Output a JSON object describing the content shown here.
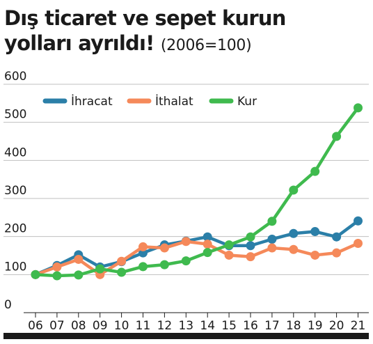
{
  "title": {
    "main": "Dış ticaret ve sepet kurun yolları ayrıldı!",
    "sub": "(2006=100)"
  },
  "chart_data": {
    "type": "line",
    "title": "Dış ticaret ve sepet kurun yolları ayrıldı!",
    "subtitle": "(2006=100)",
    "xlabel": "",
    "ylabel": "",
    "x": [
      "06",
      "07",
      "08",
      "09",
      "10",
      "11",
      "12",
      "13",
      "14",
      "15",
      "16",
      "17",
      "18",
      "19",
      "20",
      "21"
    ],
    "ylim": [
      0,
      600
    ],
    "yticks": [
      0,
      100,
      200,
      300,
      400,
      500,
      600
    ],
    "grid": true,
    "legend_position": "top-left",
    "series": [
      {
        "name": "İhracat",
        "color": "#2b7fa8",
        "values": [
          100,
          124,
          152,
          120,
          134,
          157,
          178,
          188,
          199,
          176,
          176,
          193,
          208,
          213,
          199,
          241
        ]
      },
      {
        "name": "İthalat",
        "color": "#f5895a",
        "values": [
          100,
          120,
          140,
          100,
          135,
          173,
          170,
          187,
          180,
          151,
          147,
          170,
          166,
          151,
          157,
          182
        ]
      },
      {
        "name": "Kur",
        "color": "#3fba4e",
        "values": [
          100,
          97,
          99,
          115,
          106,
          121,
          126,
          136,
          158,
          178,
          199,
          240,
          322,
          371,
          463,
          538
        ]
      }
    ]
  }
}
